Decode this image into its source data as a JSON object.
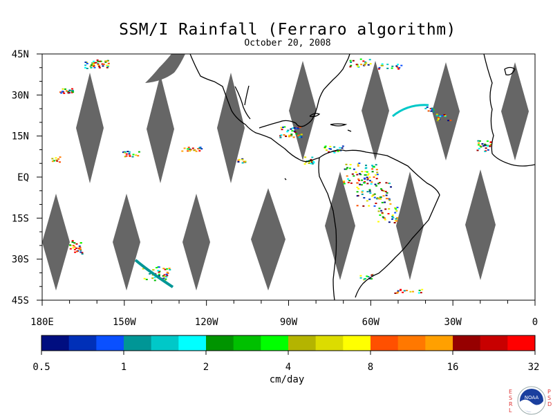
{
  "title": "SSM/I Rainfall (Ferraro algorithm)",
  "date": "October 20, 2008",
  "map": {
    "lon_range": [
      -180,
      0
    ],
    "lat_range": [
      -45,
      45
    ],
    "lat_labels": [
      {
        "lat": 45,
        "text": "45N"
      },
      {
        "lat": 30,
        "text": "30N"
      },
      {
        "lat": 15,
        "text": "15N"
      },
      {
        "lat": 0,
        "text": "EQ"
      },
      {
        "lat": -15,
        "text": "15S"
      },
      {
        "lat": -30,
        "text": "30S"
      },
      {
        "lat": -45,
        "text": "45S"
      }
    ],
    "lon_labels": [
      {
        "lon": -180,
        "text": "180E"
      },
      {
        "lon": -150,
        "text": "150W"
      },
      {
        "lon": -120,
        "text": "120W"
      },
      {
        "lon": -90,
        "text": "90W"
      },
      {
        "lon": -60,
        "text": "60W"
      },
      {
        "lon": -30,
        "text": "30W"
      },
      {
        "lon": 0,
        "text": "0"
      }
    ],
    "no_data_color": "#666666",
    "coast_color": "#000000"
  },
  "colorbar": {
    "units": "cm/day",
    "colors": [
      "#000e80",
      "#0030b8",
      "#0a50ff",
      "#009696",
      "#00c8c8",
      "#00ffff",
      "#009400",
      "#00c000",
      "#00ff00",
      "#b4b400",
      "#dcdc00",
      "#ffff00",
      "#ff5000",
      "#ff7800",
      "#ffa000",
      "#960000",
      "#c80000",
      "#ff0000"
    ],
    "labels": [
      "0.5",
      "1",
      "2",
      "4",
      "8",
      "16",
      "32"
    ]
  },
  "logo": {
    "left_text": [
      "E",
      "S",
      "R",
      "L"
    ],
    "right_text": [
      "P",
      "S",
      "D"
    ],
    "badge": "NOAA"
  }
}
